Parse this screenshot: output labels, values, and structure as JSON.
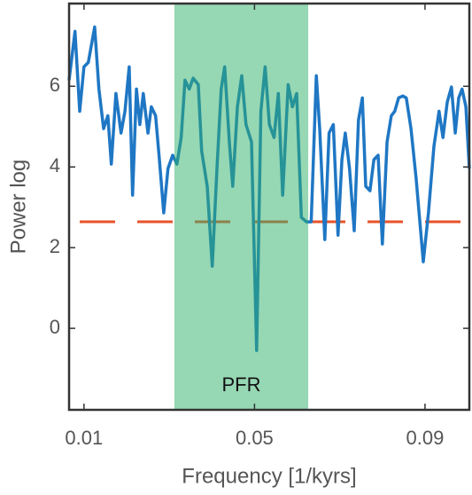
{
  "chart_data": {
    "type": "line",
    "xlabel": "Frequency [1/kyrs]",
    "ylabel": "Power log",
    "x": [
      0.0065,
      0.0079,
      0.009,
      0.01,
      0.011,
      0.0125,
      0.0135,
      0.0146,
      0.0156,
      0.0164,
      0.0175,
      0.0187,
      0.0196,
      0.0206,
      0.0214,
      0.0223,
      0.0231,
      0.0239,
      0.025,
      0.0258,
      0.0268,
      0.0277,
      0.0287,
      0.0297,
      0.0308,
      0.0318,
      0.0328,
      0.0337,
      0.0347,
      0.0356,
      0.0368,
      0.0376,
      0.0389,
      0.0401,
      0.0412,
      0.0422,
      0.043,
      0.0441,
      0.0449,
      0.046,
      0.047,
      0.048,
      0.0493,
      0.0505,
      0.0515,
      0.0525,
      0.0535,
      0.0546,
      0.0556,
      0.0566,
      0.0579,
      0.0589,
      0.0599,
      0.061,
      0.0622,
      0.0633,
      0.0645,
      0.0653,
      0.0665,
      0.0675,
      0.0685,
      0.0696,
      0.0705,
      0.0713,
      0.0723,
      0.0734,
      0.0744,
      0.0753,
      0.0761,
      0.0771,
      0.078,
      0.079,
      0.08,
      0.0811,
      0.0821,
      0.0829,
      0.0838,
      0.0848,
      0.0856,
      0.0867,
      0.0879,
      0.0896,
      0.0908,
      0.0921,
      0.0933,
      0.0942,
      0.0952,
      0.0962,
      0.0971,
      0.0979,
      0.0987,
      0.0996,
      0.1004
    ],
    "values": [
      6.15,
      7.36,
      5.38,
      6.48,
      6.59,
      7.47,
      5.93,
      4.95,
      5.27,
      4.07,
      5.82,
      4.84,
      5.38,
      6.48,
      3.3,
      5.93,
      5.05,
      5.82,
      4.84,
      5.49,
      5.27,
      4.18,
      2.86,
      3.96,
      4.29,
      4.07,
      4.73,
      6.15,
      5.93,
      6.2,
      6.04,
      4.4,
      3.52,
      1.54,
      3.96,
      5.93,
      6.48,
      4.62,
      3.52,
      5.49,
      6.26,
      5.05,
      4.62,
      -0.55,
      5.38,
      6.48,
      5.05,
      4.73,
      5.82,
      3.3,
      6.04,
      5.49,
      5.82,
      2.75,
      2.64,
      2.64,
      6.26,
      4.95,
      2.2,
      4.84,
      5.05,
      2.31,
      4.18,
      4.84,
      3.96,
      2.42,
      5.16,
      5.71,
      3.52,
      3.41,
      4.18,
      4.29,
      2.09,
      4.62,
      5.27,
      5.38,
      5.71,
      5.76,
      5.71,
      4.95,
      3.74,
      1.65,
      2.86,
      4.51,
      5.38,
      4.73,
      5.6,
      5.98,
      4.84,
      5.71,
      5.93,
      5.49,
      3.96
    ],
    "color": "#1f77c4",
    "threshold": {
      "value": 2.64,
      "color": "#e8532a"
    },
    "band": {
      "label": "PFR",
      "range": [
        0.0312,
        0.0626
      ],
      "color": "#2eb06a"
    },
    "xlim": [
      0.0065,
      0.1004
    ],
    "ylim": [
      -2.02,
      8.05
    ],
    "xticks": [
      0.01,
      0.05,
      0.09
    ],
    "yticks": [
      0,
      2,
      4,
      6
    ]
  }
}
